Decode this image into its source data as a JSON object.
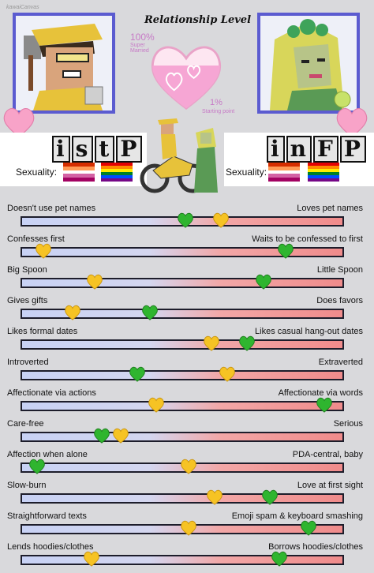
{
  "watermark": "kawaiCanvas",
  "relationship": {
    "title": "Relationship Level",
    "top_pct": "100%",
    "top_label": "Super Married",
    "bottom_pct": "1%",
    "bottom_label": "Starting point",
    "meter_level": 0.65
  },
  "left": {
    "type_letters": [
      "i",
      "s",
      "t",
      "P"
    ],
    "sexuality_label": "Sexuality:",
    "flags": [
      {
        "icon": "lesbian-flag",
        "colors": [
          "#d52d00",
          "#ff9a56",
          "#ffffff",
          "#d362a4",
          "#a30262"
        ]
      },
      {
        "icon": "rainbow-flag",
        "colors": [
          "#e40303",
          "#ff8c00",
          "#ffed00",
          "#008026",
          "#004dff",
          "#750787"
        ]
      }
    ]
  },
  "right": {
    "type_letters": [
      "i",
      "n",
      "F",
      "P"
    ],
    "sexuality_label": "Sexuality:",
    "flags": [
      {
        "icon": "lesbian-flag",
        "colors": [
          "#d52d00",
          "#ff9a56",
          "#ffffff",
          "#d362a4",
          "#a30262"
        ]
      },
      {
        "icon": "rainbow-flag",
        "colors": [
          "#e40303",
          "#ff8c00",
          "#ffed00",
          "#008026",
          "#004dff",
          "#750787"
        ]
      }
    ]
  },
  "colors": {
    "green_heart": "#2fb52f",
    "yellow_heart": "#f6c324",
    "pink_heart": "#f8a3c8",
    "frame": "#5b5bd0"
  },
  "rows": [
    {
      "left": "Doesn't use pet names",
      "right": "Loves pet names",
      "green": 0.51,
      "yellow": 0.62
    },
    {
      "left": "Confesses first",
      "right": "Waits to be confessed to first",
      "green": 0.82,
      "yellow": 0.07
    },
    {
      "left": "Big Spoon",
      "right": "Little Spoon",
      "green": 0.75,
      "yellow": 0.23
    },
    {
      "left": "Gives gifts",
      "right": "Does favors",
      "green": 0.4,
      "yellow": 0.16
    },
    {
      "left": "Likes formal dates",
      "right": "Likes casual hang-out dates",
      "green": 0.7,
      "yellow": 0.59
    },
    {
      "left": "Introverted",
      "right": "Extraverted",
      "green": 0.36,
      "yellow": 0.64
    },
    {
      "left": "Affectionate via actions",
      "right": "Affectionate via words",
      "green": 0.94,
      "yellow": 0.42
    },
    {
      "left": "Care-free",
      "right": "Serious",
      "green": 0.25,
      "yellow": 0.31
    },
    {
      "left": "Affection when alone",
      "right": "PDA-central, baby",
      "green": 0.05,
      "yellow": 0.52
    },
    {
      "left": "Slow-burn",
      "right": "Love at first sight",
      "green": 0.77,
      "yellow": 0.6
    },
    {
      "left": "Straightforward texts",
      "right": "Emoji spam & keyboard smashing",
      "green": 0.89,
      "yellow": 0.52
    },
    {
      "left": "Lends hoodies/clothes",
      "right": "Borrows hoodies/clothes",
      "green": 0.8,
      "yellow": 0.22
    }
  ]
}
